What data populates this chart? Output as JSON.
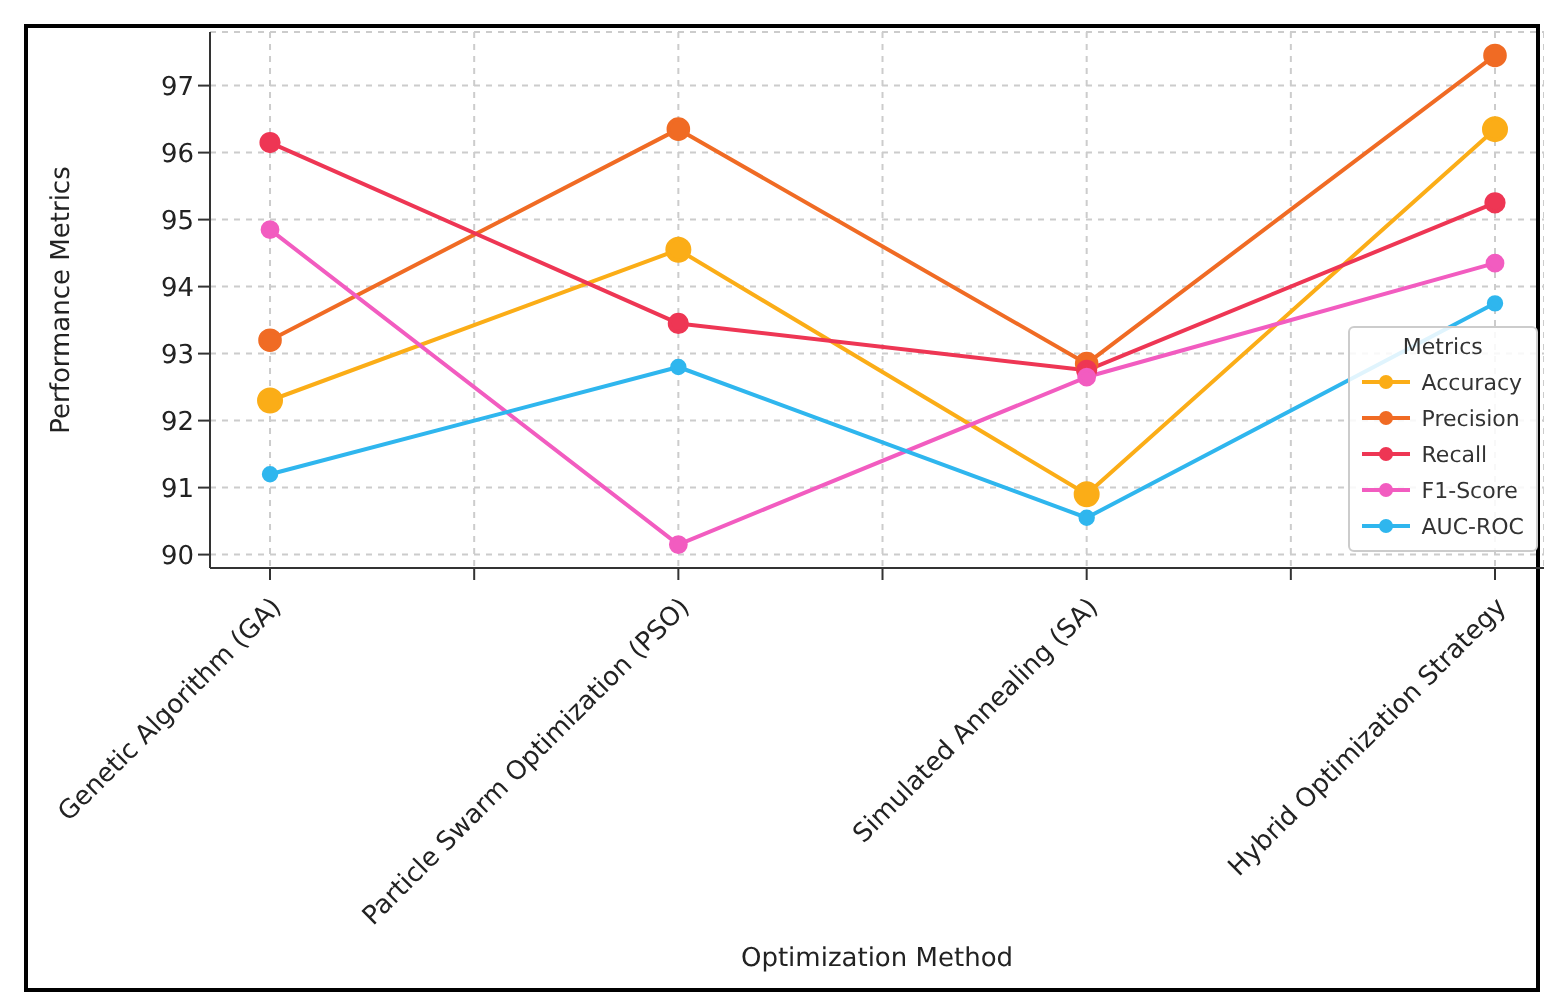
{
  "chart_data": {
    "type": "line",
    "xlabel": "Optimization Method",
    "ylabel": "Performance Metrics",
    "legend_title": "Metrics",
    "categories": [
      "Genetic Algorithm (GA)",
      "Particle Swarm Optimization (PSO)",
      "Simulated Annealing (SA)",
      "Hybrid Optimization Strategy"
    ],
    "series": [
      {
        "name": "Accuracy",
        "color": "#fbad17",
        "values": [
          92.3,
          94.55,
          90.9,
          96.35
        ]
      },
      {
        "name": "Precision",
        "color": "#f06b24",
        "values": [
          93.2,
          96.35,
          92.85,
          97.45
        ]
      },
      {
        "name": "Recall",
        "color": "#ee3654",
        "values": [
          96.15,
          93.45,
          92.75,
          95.25
        ]
      },
      {
        "name": "F1-Score",
        "color": "#f25cc0",
        "values": [
          94.85,
          90.15,
          92.65,
          94.35
        ]
      },
      {
        "name": "AUC-ROC",
        "color": "#2fb6ee",
        "values": [
          91.2,
          92.8,
          90.55,
          93.75
        ]
      }
    ],
    "ylim": [
      89.8,
      97.8
    ],
    "yticks": [
      90,
      91,
      92,
      93,
      94,
      95,
      96,
      97
    ],
    "grid": true,
    "legend": "bottom right",
    "marker": "circle",
    "line_style": "solid"
  }
}
